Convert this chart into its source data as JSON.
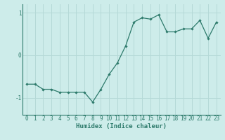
{
  "x": [
    0,
    1,
    2,
    3,
    4,
    5,
    6,
    7,
    8,
    9,
    10,
    11,
    12,
    13,
    14,
    15,
    16,
    17,
    18,
    19,
    20,
    21,
    22,
    23
  ],
  "y": [
    -0.68,
    -0.68,
    -0.8,
    -0.8,
    -0.87,
    -0.87,
    -0.87,
    -0.87,
    -1.1,
    -0.8,
    -0.45,
    -0.18,
    0.22,
    0.78,
    0.88,
    0.85,
    0.95,
    0.55,
    0.55,
    0.62,
    0.62,
    0.82,
    0.4,
    0.78
  ],
  "line_color": "#2d7a6b",
  "marker": "D",
  "marker_size": 1.8,
  "linewidth": 0.9,
  "bg_color": "#cdecea",
  "grid_color": "#b5d9d7",
  "xlabel": "Humidex (Indice chaleur)",
  "xlabel_fontsize": 6.5,
  "tick_fontsize": 5.5,
  "yticks": [
    -1,
    0,
    1
  ],
  "ylim": [
    -1.4,
    1.2
  ],
  "xlim": [
    -0.5,
    23.5
  ],
  "xtick_labels": [
    "0",
    "1",
    "2",
    "3",
    "4",
    "5",
    "6",
    "7",
    "8",
    "9",
    "10",
    "11",
    "12",
    "13",
    "14",
    "15",
    "16",
    "17",
    "18",
    "19",
    "20",
    "21",
    "22",
    "23"
  ]
}
